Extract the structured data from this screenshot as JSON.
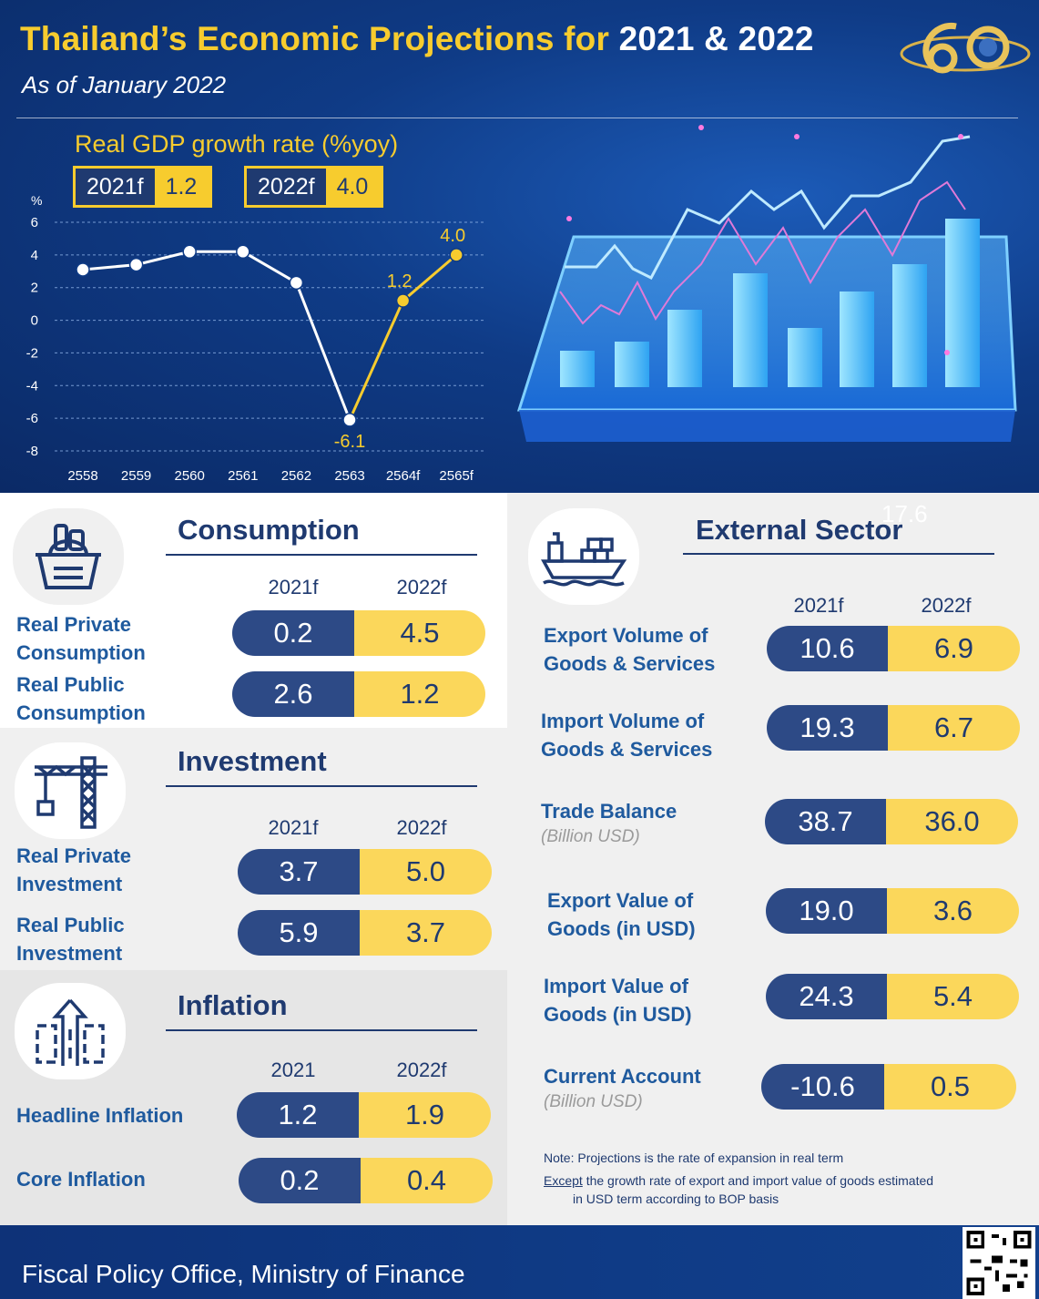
{
  "header": {
    "title_part1": "Thailand’s Economic Projections for",
    "title_part2": "2021  & 2022",
    "subtitle": "As of January 2022"
  },
  "gdp": {
    "title": "Real GDP growth rate (%yoy)",
    "badges": [
      {
        "year": "2021f",
        "value": "1.2"
      },
      {
        "year": "2022f",
        "value": "4.0"
      }
    ]
  },
  "chart_data": {
    "type": "line",
    "title": "Real GDP growth rate (%yoy)",
    "ylabel": "%",
    "xlabel": "",
    "categories": [
      "2558",
      "2559",
      "2560",
      "2561",
      "2562",
      "2563",
      "2564f",
      "2565f"
    ],
    "ylim": [
      -8,
      6
    ],
    "yticks": [
      6,
      4,
      2,
      0,
      -2,
      -4,
      -6,
      -8
    ],
    "series": [
      {
        "values": [
          3.1,
          3.4,
          4.2,
          4.2,
          2.3,
          -6.1,
          1.2,
          4.0
        ],
        "color_actual": "#ffffff",
        "color_forecast": "#f7cc2e",
        "forecast_from_index": 5
      }
    ],
    "data_labels": [
      {
        "index": 5,
        "text": "-6.1"
      },
      {
        "index": 6,
        "text": "1.2"
      },
      {
        "index": 7,
        "text": "4.0"
      }
    ],
    "grid": true
  },
  "consumption": {
    "title": "Consumption",
    "col_2021": "2021f",
    "col_2022": "2022f",
    "rows": [
      {
        "label_line1": "Real Private",
        "label_line2": "Consumption",
        "v2021": "0.2",
        "v2022": "4.5"
      },
      {
        "label_line1": "Real Public",
        "label_line2": "Consumption",
        "v2021": "2.6",
        "v2022": "1.2"
      }
    ]
  },
  "investment": {
    "title": "Investment",
    "col_2021": "2021f",
    "col_2022": "2022f",
    "rows": [
      {
        "label_line1": "Real Private",
        "label_line2": "Investment",
        "v2021": "3.7",
        "v2022": "5.0"
      },
      {
        "label_line1": "Real Public",
        "label_line2": "Investment",
        "v2021": "5.9",
        "v2022": "3.7"
      }
    ]
  },
  "inflation": {
    "title": "Inflation",
    "col_2021": "2021",
    "col_2022": "2022f",
    "rows": [
      {
        "label": "Headline Inflation",
        "v2021": "1.2",
        "v2022": "1.9"
      },
      {
        "label": "Core Inflation",
        "v2021": "0.2",
        "v2022": "0.4"
      }
    ]
  },
  "external": {
    "title": "External Sector",
    "col_2021": "2021f",
    "col_2022": "2022f",
    "rows": [
      {
        "label_line1": "Export Volume of",
        "label_line2": "Goods & Services",
        "sub": "",
        "v2021": "10.6",
        "v2022": "6.9"
      },
      {
        "label_line1": "Import Volume of",
        "label_line2": "Goods & Services",
        "sub": "",
        "v2021": "19.3",
        "v2022": "6.7"
      },
      {
        "label_line1": "Trade Balance",
        "label_line2": "",
        "sub": "(Billion USD)",
        "v2021": "38.7",
        "v2022": "36.0"
      },
      {
        "label_line1": "Export Value of",
        "label_line2": "Goods (in USD)",
        "sub": "",
        "v2021": "19.0",
        "v2022": "3.6"
      },
      {
        "label_line1": "Import Value of",
        "label_line2": "Goods (in USD)",
        "sub": "",
        "v2021": "24.3",
        "v2022": "5.4"
      },
      {
        "label_line1": "Current Account",
        "label_line2": "",
        "sub": "(Billion USD)",
        "v2021": "-10.6",
        "v2022": "0.5"
      }
    ],
    "ghost_text": "17.6"
  },
  "note": {
    "line1": "Note: Projections is the rate of expansion in real term",
    "line2_underlined": "Except",
    "line2_rest": " the growth rate of export and import value of goods estimated",
    "line3": "in USD term according to BOP basis"
  },
  "footer": {
    "text": "Fiscal Policy Office, Ministry of Finance"
  },
  "colors": {
    "navy": "#1f3a70",
    "pill_navy": "#2d4a86",
    "yellow": "#f7cc2e",
    "pill_yellow": "#fbd75b",
    "header_blue": "#0f3b86"
  },
  "icons": [
    "basket-icon",
    "crane-icon",
    "inflation-arrow-icon",
    "cargo-ship-icon",
    "anniversary-60-logo",
    "qr-code"
  ]
}
